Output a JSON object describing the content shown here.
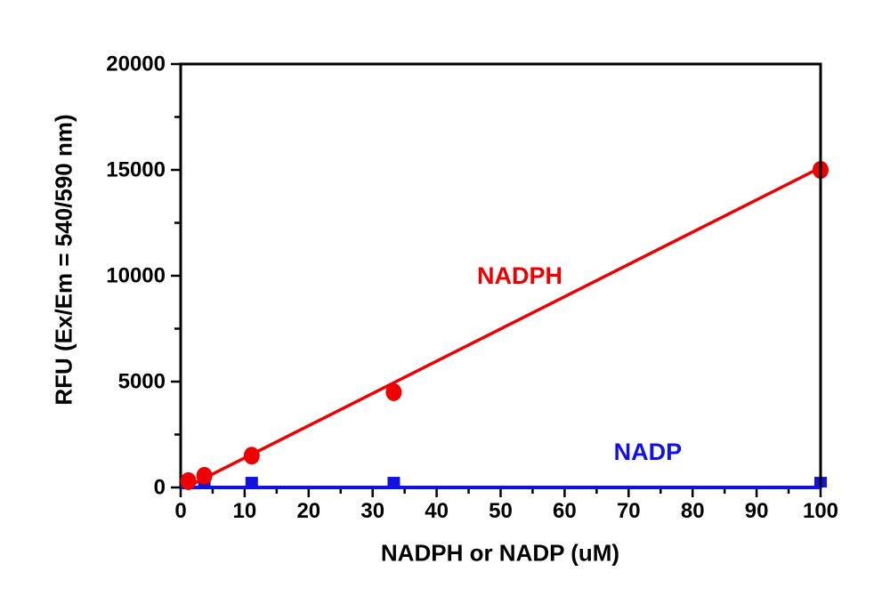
{
  "chart_data": {
    "type": "scatter",
    "title": "",
    "xlabel": "NADPH or NADP (uM)",
    "ylabel": "RFU (Ex/Em = 540/590 nm)",
    "xlim": [
      0,
      100
    ],
    "ylim": [
      0,
      20000
    ],
    "x_major_ticks": [
      0,
      10,
      20,
      30,
      40,
      50,
      60,
      70,
      80,
      90,
      100
    ],
    "x_minor_step": 5,
    "y_major_ticks": [
      0,
      5000,
      10000,
      15000,
      20000
    ],
    "y_minor_step": 2500,
    "grid": false,
    "legend_position": "none",
    "frame": true,
    "axis_color": "#000000",
    "series": [
      {
        "name": "NADP",
        "marker": "square",
        "color": "#1212e0",
        "points": [
          [
            1.2,
            250
          ],
          [
            3.7,
            250
          ],
          [
            11.1,
            250
          ],
          [
            33.3,
            250
          ],
          [
            100,
            250
          ]
        ],
        "fit_line": {
          "from": [
            0,
            0
          ],
          "to": [
            100,
            0
          ]
        },
        "label": {
          "text": "NADP",
          "x": 73,
          "y": 1680
        }
      },
      {
        "name": "NADPH",
        "marker": "circle",
        "color": "#ee0000",
        "points": [
          [
            1.2,
            300
          ],
          [
            3.7,
            550
          ],
          [
            11.1,
            1500
          ],
          [
            33.3,
            4500
          ],
          [
            100,
            15000
          ]
        ],
        "fit_line": {
          "from": [
            1.5,
            100
          ],
          "to": [
            100.6,
            15200
          ]
        },
        "label": {
          "text": "NADPH",
          "x": 53,
          "y": 10000
        }
      }
    ]
  }
}
